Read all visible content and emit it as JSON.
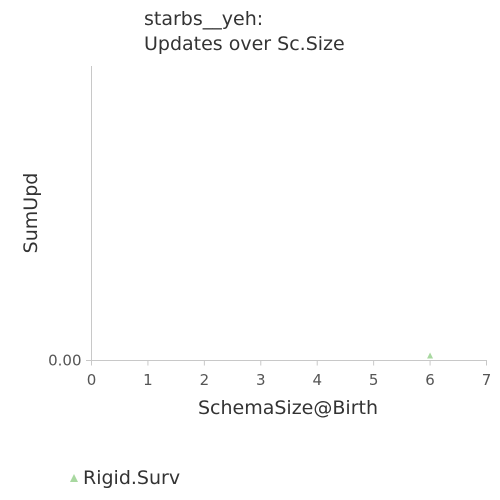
{
  "chart_data": {
    "type": "scatter",
    "title": [
      "starbs__yeh:",
      "Updates over Sc.Size"
    ],
    "xlabel": "SchemaSize@Birth",
    "ylabel": "SumUpd",
    "xlim": [
      0,
      7
    ],
    "x_ticks": [
      "0",
      "1",
      "2",
      "3",
      "4",
      "5",
      "6",
      "7"
    ],
    "y_ticks": [
      "0.00"
    ],
    "grid": false,
    "legend_position": "bottom-left",
    "series": [
      {
        "name": "Rigid.Surv",
        "marker": "triangle",
        "color": "#a8d8a0",
        "points": [
          {
            "x": 6,
            "y": 0
          }
        ]
      }
    ]
  }
}
